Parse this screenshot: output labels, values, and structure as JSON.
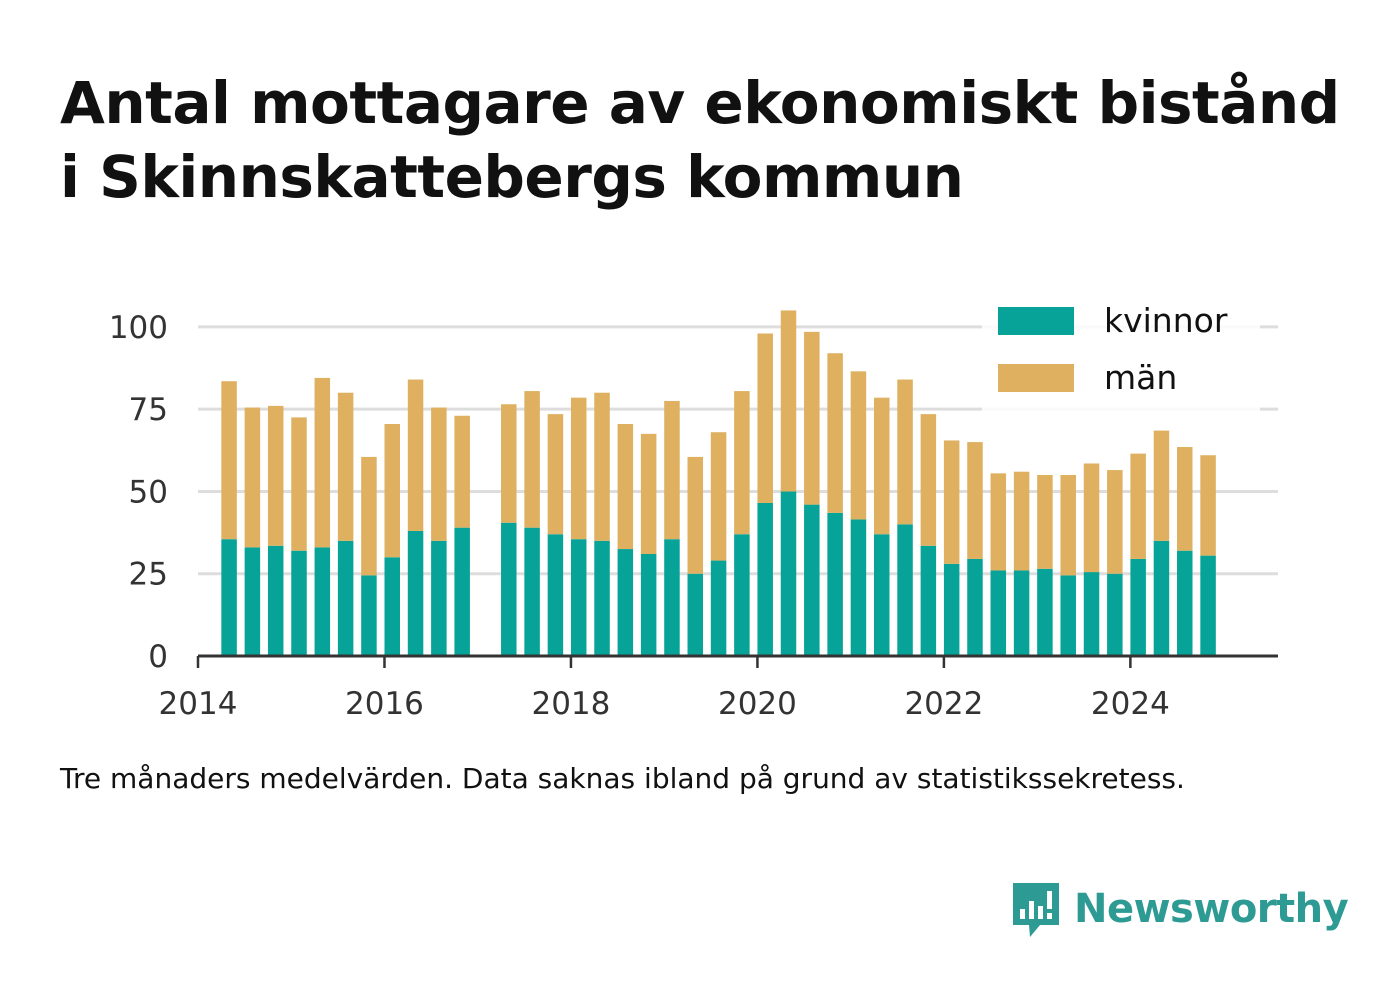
{
  "title_line1": "Antal mottagare av ekonomiskt bistånd",
  "title_line2": "i Skinnskattebergs kommun",
  "footnote": "Tre månaders medelvärden. Data saknas ibland på grund av statistikssekretess.",
  "brand": {
    "name": "Newsworthy",
    "icon": "bar-chart-speech-bubble-icon",
    "color": "#2e9a94"
  },
  "colors": {
    "kvinnor": "#07a398",
    "man": "#deb05f",
    "grid": "#dddddd",
    "axis": "#333333"
  },
  "chart_data": {
    "type": "bar",
    "stacked": true,
    "x": [
      "2014-05",
      "2014-08",
      "2014-11",
      "2015-02",
      "2015-05",
      "2015-08",
      "2015-11",
      "2016-02",
      "2016-05",
      "2016-08",
      "2016-11",
      "2017-05",
      "2017-08",
      "2017-11",
      "2018-02",
      "2018-05",
      "2018-08",
      "2018-11",
      "2019-02",
      "2019-05",
      "2019-08",
      "2019-11",
      "2020-02",
      "2020-05",
      "2020-08",
      "2020-11",
      "2021-02",
      "2021-05",
      "2021-08",
      "2021-11",
      "2022-02",
      "2022-05",
      "2022-08",
      "2022-11",
      "2023-02",
      "2023-05",
      "2023-08",
      "2023-11",
      "2024-02",
      "2024-05",
      "2024-08",
      "2024-11"
    ],
    "series": [
      {
        "name": "kvinnor",
        "color": "#07a398",
        "values": [
          35.5,
          33,
          33.5,
          32,
          33,
          35,
          24.5,
          30,
          38,
          35,
          39,
          40.5,
          39,
          37,
          35.5,
          35,
          32.5,
          31,
          35.5,
          25,
          29,
          37,
          46.5,
          50,
          46,
          43.5,
          41.5,
          37,
          40,
          33.5,
          28,
          29.5,
          26,
          26,
          26.5,
          24.5,
          25.5,
          25,
          29.5,
          35,
          32,
          30.5
        ]
      },
      {
        "name": "män",
        "color": "#deb05f",
        "values": [
          48,
          42.5,
          42.5,
          40.5,
          51.5,
          45,
          36,
          40.5,
          46,
          40.5,
          34,
          36,
          41.5,
          36.5,
          43,
          45,
          38,
          36.5,
          42,
          35.5,
          39,
          43.5,
          51.5,
          55,
          52.5,
          48.5,
          45,
          41.5,
          44,
          40,
          37.5,
          35.5,
          29.5,
          30,
          28.5,
          30.5,
          33,
          31.5,
          32,
          33.5,
          31.5,
          30.5
        ]
      }
    ],
    "xlim": [
      "2014-01",
      "2025-08"
    ],
    "x_ticks": [
      "2014",
      "2016",
      "2018",
      "2020",
      "2022",
      "2024"
    ],
    "ylim": [
      0,
      110
    ],
    "y_ticks": [
      0,
      25,
      50,
      75,
      100
    ],
    "grid": "horizontal",
    "legend": {
      "position": "top-right",
      "items": [
        "kvinnor",
        "män"
      ]
    }
  }
}
